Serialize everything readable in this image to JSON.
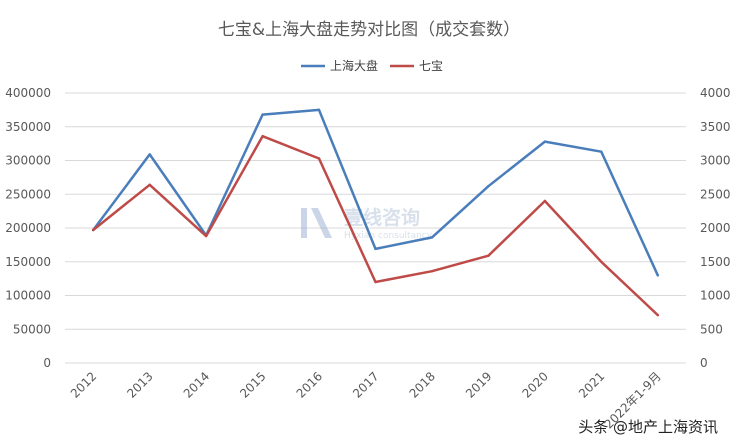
{
  "chart_data": {
    "type": "line",
    "title": "七宝&上海大盘走势对比图（成交套数）",
    "categories": [
      "2012",
      "2013",
      "2014",
      "2015",
      "2016",
      "2017",
      "2018",
      "2019",
      "2020",
      "2021",
      "2022年1-9月"
    ],
    "series": [
      {
        "name": "上海大盘",
        "axis": "left",
        "color": "#4a7ebb",
        "values": [
          197000,
          309000,
          189000,
          368000,
          375000,
          169000,
          186000,
          262000,
          328000,
          313000,
          130000
        ]
      },
      {
        "name": "七宝",
        "axis": "right",
        "color": "#be4b48",
        "values": [
          1970,
          2640,
          1880,
          3360,
          3030,
          1200,
          1360,
          1590,
          2400,
          1500,
          710
        ]
      }
    ],
    "y_left": {
      "min": 0,
      "max": 400000,
      "ticks": [
        "0",
        "50000",
        "100000",
        "150000",
        "200000",
        "250000",
        "300000",
        "350000",
        "400000"
      ]
    },
    "y_right": {
      "min": 0,
      "max": 4000,
      "ticks": [
        "0",
        "500",
        "1000",
        "1500",
        "2000",
        "2500",
        "3000",
        "3500",
        "4000"
      ]
    },
    "legend_position": "top-center",
    "grid": true,
    "gridline_color": "#d9d9d9"
  },
  "watermark": {
    "name": "壹线咨询",
    "sub": "Hyxian consultancy"
  },
  "footer": {
    "text": "头条 @地产上海资讯"
  }
}
